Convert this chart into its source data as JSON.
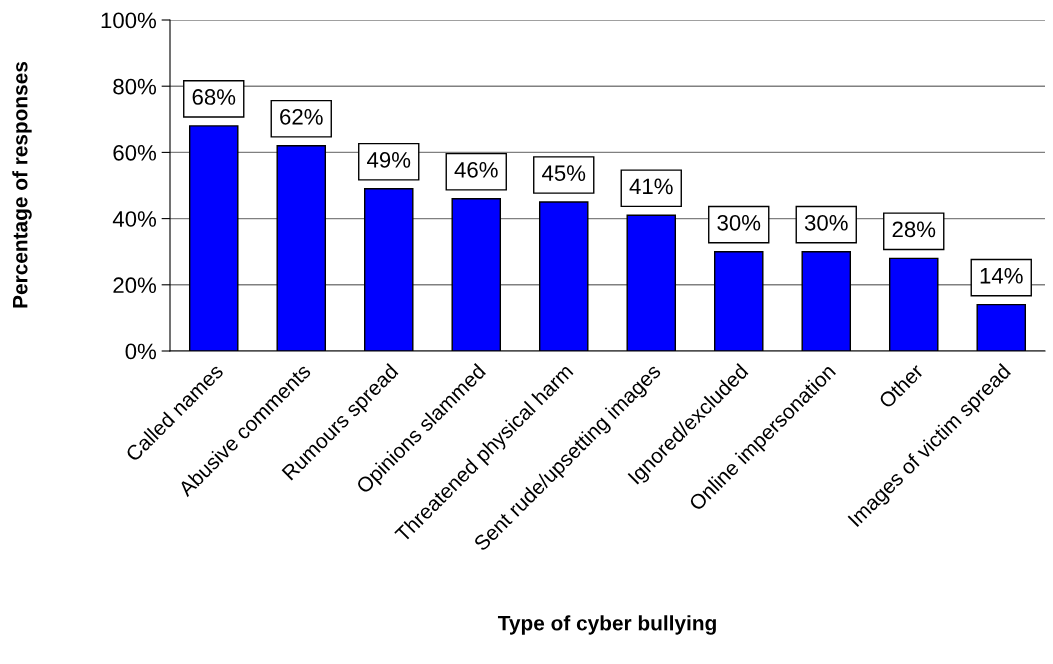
{
  "chart_data": {
    "type": "bar",
    "xlabel": "Type of cyber bullying",
    "ylabel": "Percentage of responses",
    "categories": [
      "Called names",
      "Abusive comments",
      "Rumours spread",
      "Opinions slammed",
      "Threatened physical harm",
      "Sent rude/upsetting images",
      "Ignored/excluded",
      "Online impersonation",
      "Other",
      "Images of victim spread"
    ],
    "values": [
      68,
      62,
      49,
      46,
      45,
      41,
      30,
      30,
      28,
      14
    ],
    "value_labels": [
      "68%",
      "62%",
      "49%",
      "46%",
      "45%",
      "41%",
      "30%",
      "30%",
      "28%",
      "14%"
    ],
    "color": "#0000ff",
    "ylim": [
      0,
      100
    ],
    "yticks": [
      {
        "value": 0,
        "label": "0%"
      },
      {
        "value": 20,
        "label": "20%"
      },
      {
        "value": 40,
        "label": "40%"
      },
      {
        "value": 60,
        "label": "60%"
      },
      {
        "value": 80,
        "label": "80%"
      },
      {
        "value": 100,
        "label": "100%"
      }
    ],
    "grid": "y",
    "legend": false
  }
}
